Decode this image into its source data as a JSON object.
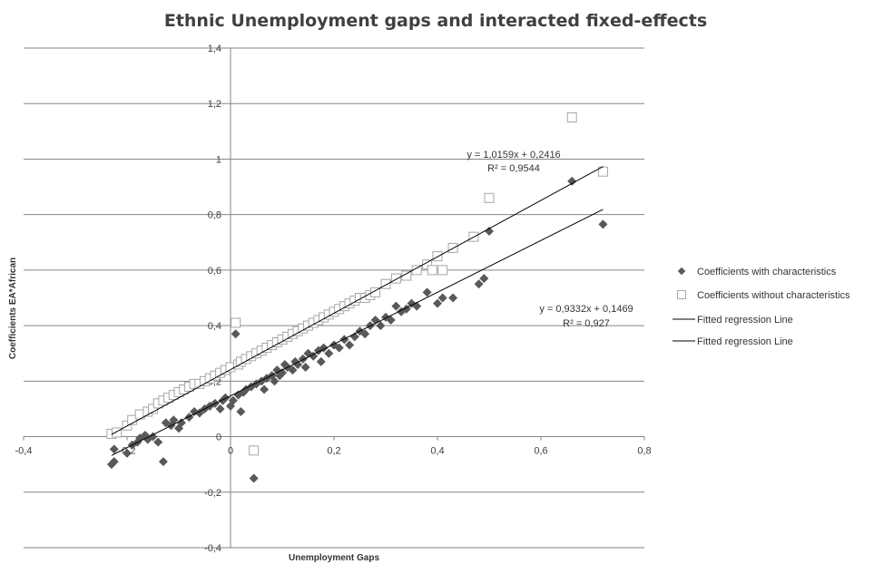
{
  "chart_data": {
    "type": "scatter",
    "title": "Ethnic Unemployment gaps and interacted fixed-effects",
    "xlabel": "Unemployment Gaps",
    "ylabel": "Coefficients EA*African",
    "xlim": [
      -0.4,
      0.8
    ],
    "ylim": [
      -0.4,
      1.4
    ],
    "x_ticks": [
      "-0,4",
      "-0,2",
      "0",
      "0,2",
      "0,4",
      "0,6",
      "0,8"
    ],
    "y_ticks": [
      "-0,4",
      "-0,2",
      "0",
      "0,2",
      "0,4",
      "0,6",
      "0,8",
      "1",
      "1,2",
      "1,4"
    ],
    "grid": "horizontal",
    "legend_position": "right",
    "colors": {
      "with": "#595959",
      "without": "#a6a6a6",
      "grid": "#868686",
      "line": "#000000",
      "title": "#404040"
    },
    "series": [
      {
        "name": "Coefficients with characteristics",
        "marker": "diamond-filled",
        "points": [
          [
            -0.23,
            -0.1
          ],
          [
            -0.225,
            -0.09
          ],
          [
            -0.225,
            -0.045
          ],
          [
            -0.2,
            -0.06
          ],
          [
            -0.19,
            -0.03
          ],
          [
            -0.18,
            -0.02
          ],
          [
            -0.175,
            -0.005
          ],
          [
            -0.165,
            0.005
          ],
          [
            -0.16,
            -0.01
          ],
          [
            -0.15,
            0.0
          ],
          [
            -0.14,
            -0.02
          ],
          [
            -0.13,
            -0.09
          ],
          [
            -0.125,
            0.05
          ],
          [
            -0.115,
            0.04
          ],
          [
            -0.11,
            0.06
          ],
          [
            -0.1,
            0.03
          ],
          [
            -0.095,
            0.05
          ],
          [
            -0.08,
            0.07
          ],
          [
            -0.07,
            0.09
          ],
          [
            -0.06,
            0.085
          ],
          [
            -0.05,
            0.1
          ],
          [
            -0.04,
            0.11
          ],
          [
            -0.03,
            0.12
          ],
          [
            -0.02,
            0.1
          ],
          [
            -0.015,
            0.13
          ],
          [
            -0.01,
            0.14
          ],
          [
            0.0,
            0.11
          ],
          [
            0.005,
            0.13
          ],
          [
            0.01,
            0.37
          ],
          [
            0.015,
            0.15
          ],
          [
            0.02,
            0.09
          ],
          [
            0.025,
            0.16
          ],
          [
            0.03,
            0.17
          ],
          [
            0.04,
            0.18
          ],
          [
            0.045,
            -0.15
          ],
          [
            0.05,
            0.19
          ],
          [
            0.06,
            0.2
          ],
          [
            0.065,
            0.17
          ],
          [
            0.07,
            0.21
          ],
          [
            0.08,
            0.22
          ],
          [
            0.085,
            0.2
          ],
          [
            0.09,
            0.24
          ],
          [
            0.095,
            0.22
          ],
          [
            0.1,
            0.23
          ],
          [
            0.105,
            0.26
          ],
          [
            0.11,
            0.25
          ],
          [
            0.12,
            0.24
          ],
          [
            0.125,
            0.27
          ],
          [
            0.13,
            0.26
          ],
          [
            0.14,
            0.28
          ],
          [
            0.145,
            0.25
          ],
          [
            0.15,
            0.3
          ],
          [
            0.16,
            0.29
          ],
          [
            0.17,
            0.31
          ],
          [
            0.175,
            0.27
          ],
          [
            0.18,
            0.32
          ],
          [
            0.19,
            0.3
          ],
          [
            0.2,
            0.33
          ],
          [
            0.21,
            0.32
          ],
          [
            0.22,
            0.35
          ],
          [
            0.23,
            0.33
          ],
          [
            0.24,
            0.36
          ],
          [
            0.25,
            0.38
          ],
          [
            0.26,
            0.37
          ],
          [
            0.27,
            0.4
          ],
          [
            0.28,
            0.42
          ],
          [
            0.29,
            0.4
          ],
          [
            0.3,
            0.43
          ],
          [
            0.31,
            0.42
          ],
          [
            0.32,
            0.47
          ],
          [
            0.33,
            0.45
          ],
          [
            0.34,
            0.46
          ],
          [
            0.35,
            0.48
          ],
          [
            0.36,
            0.47
          ],
          [
            0.38,
            0.52
          ],
          [
            0.4,
            0.48
          ],
          [
            0.41,
            0.5
          ],
          [
            0.43,
            0.5
          ],
          [
            0.48,
            0.55
          ],
          [
            0.49,
            0.57
          ],
          [
            0.5,
            0.74
          ],
          [
            0.66,
            0.92
          ],
          [
            0.72,
            0.765
          ]
        ]
      },
      {
        "name": "Coefficients without characteristics",
        "marker": "square-open",
        "points": [
          [
            -0.23,
            0.01
          ],
          [
            -0.22,
            0.015
          ],
          [
            -0.2,
            0.04
          ],
          [
            -0.19,
            0.06
          ],
          [
            -0.175,
            0.08
          ],
          [
            -0.16,
            0.09
          ],
          [
            -0.15,
            0.1
          ],
          [
            -0.14,
            0.12
          ],
          [
            -0.13,
            0.13
          ],
          [
            -0.12,
            0.14
          ],
          [
            -0.11,
            0.15
          ],
          [
            -0.1,
            0.16
          ],
          [
            -0.09,
            0.17
          ],
          [
            -0.08,
            0.18
          ],
          [
            -0.07,
            0.19
          ],
          [
            -0.06,
            0.19
          ],
          [
            -0.05,
            0.2
          ],
          [
            -0.04,
            0.21
          ],
          [
            -0.03,
            0.22
          ],
          [
            -0.02,
            0.23
          ],
          [
            -0.01,
            0.24
          ],
          [
            0.0,
            0.25
          ],
          [
            0.01,
            0.41
          ],
          [
            0.015,
            0.26
          ],
          [
            0.02,
            0.27
          ],
          [
            0.03,
            0.28
          ],
          [
            0.04,
            0.29
          ],
          [
            0.045,
            -0.05
          ],
          [
            0.05,
            0.3
          ],
          [
            0.06,
            0.31
          ],
          [
            0.07,
            0.32
          ],
          [
            0.08,
            0.33
          ],
          [
            0.09,
            0.34
          ],
          [
            0.1,
            0.35
          ],
          [
            0.11,
            0.36
          ],
          [
            0.12,
            0.37
          ],
          [
            0.13,
            0.38
          ],
          [
            0.14,
            0.39
          ],
          [
            0.15,
            0.4
          ],
          [
            0.16,
            0.41
          ],
          [
            0.17,
            0.42
          ],
          [
            0.18,
            0.43
          ],
          [
            0.19,
            0.44
          ],
          [
            0.2,
            0.45
          ],
          [
            0.21,
            0.46
          ],
          [
            0.22,
            0.47
          ],
          [
            0.23,
            0.48
          ],
          [
            0.24,
            0.49
          ],
          [
            0.25,
            0.5
          ],
          [
            0.26,
            0.5
          ],
          [
            0.27,
            0.51
          ],
          [
            0.28,
            0.52
          ],
          [
            0.3,
            0.55
          ],
          [
            0.32,
            0.57
          ],
          [
            0.34,
            0.58
          ],
          [
            0.36,
            0.6
          ],
          [
            0.38,
            0.62
          ],
          [
            0.39,
            0.6
          ],
          [
            0.4,
            0.65
          ],
          [
            0.41,
            0.6
          ],
          [
            0.43,
            0.68
          ],
          [
            0.47,
            0.72
          ],
          [
            0.5,
            0.86
          ],
          [
            0.66,
            1.15
          ],
          [
            0.72,
            0.955
          ]
        ]
      }
    ],
    "trendlines": [
      {
        "name": "Fitted regression Line",
        "slope": 1.0159,
        "intercept": 0.2416,
        "x_range": [
          -0.23,
          0.72
        ],
        "equation": "y = 1,0159x + 0,2416",
        "r2": "R² = 0,9544"
      },
      {
        "name": "Fitted regression Line",
        "slope": 0.9332,
        "intercept": 0.1469,
        "x_range": [
          -0.23,
          0.72
        ],
        "equation": "y = 0,9332x + 0,1469",
        "r2": "R² = 0,927"
      }
    ]
  }
}
